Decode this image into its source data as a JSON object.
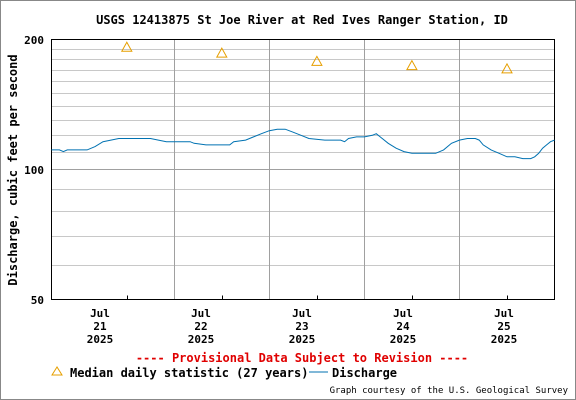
{
  "chart_data": {
    "type": "line",
    "title": "USGS 12413875 St Joe River at Red Ives Ranger Station, ID",
    "ylabel": "Discharge, cubic feet per second",
    "xlabel": "",
    "y_scale": "log",
    "ylim": [
      50,
      200
    ],
    "y_ticks": [
      "50",
      "100",
      "200"
    ],
    "x_range": [
      "2025-07-20 05:00",
      "2025-07-25 12:00"
    ],
    "x_ticks": [
      {
        "month": "Jul",
        "day": "21",
        "year": "2025"
      },
      {
        "month": "Jul",
        "day": "22",
        "year": "2025"
      },
      {
        "month": "Jul",
        "day": "23",
        "year": "2025"
      },
      {
        "month": "Jul",
        "day": "24",
        "year": "2025"
      },
      {
        "month": "Jul",
        "day": "25",
        "year": "2025"
      }
    ],
    "grid": true,
    "legend_position": "bottom",
    "series": [
      {
        "name": "Discharge",
        "color": "#0072b2",
        "style": "line",
        "points": [
          [
            "2025-07-20 05:00",
            111
          ],
          [
            "2025-07-20 07:00",
            111
          ],
          [
            "2025-07-20 08:00",
            110
          ],
          [
            "2025-07-20 09:00",
            111
          ],
          [
            "2025-07-20 14:00",
            111
          ],
          [
            "2025-07-20 16:00",
            113
          ],
          [
            "2025-07-20 18:00",
            116
          ],
          [
            "2025-07-20 20:00",
            117
          ],
          [
            "2025-07-20 22:00",
            118
          ],
          [
            "2025-07-21 02:00",
            118
          ],
          [
            "2025-07-21 06:00",
            118
          ],
          [
            "2025-07-21 08:00",
            117
          ],
          [
            "2025-07-21 10:00",
            116
          ],
          [
            "2025-07-21 16:00",
            116
          ],
          [
            "2025-07-21 17:00",
            115
          ],
          [
            "2025-07-21 20:00",
            114
          ],
          [
            "2025-07-22 01:00",
            114
          ],
          [
            "2025-07-22 02:00",
            114
          ],
          [
            "2025-07-22 03:00",
            116
          ],
          [
            "2025-07-22 06:00",
            117
          ],
          [
            "2025-07-22 08:00",
            119
          ],
          [
            "2025-07-22 10:00",
            121
          ],
          [
            "2025-07-22 12:00",
            123
          ],
          [
            "2025-07-22 14:00",
            124
          ],
          [
            "2025-07-22 16:00",
            124
          ],
          [
            "2025-07-22 18:00",
            122
          ],
          [
            "2025-07-22 20:00",
            120
          ],
          [
            "2025-07-22 22:00",
            118
          ],
          [
            "2025-07-23 02:00",
            117
          ],
          [
            "2025-07-23 06:00",
            117
          ],
          [
            "2025-07-23 07:00",
            116
          ],
          [
            "2025-07-23 08:00",
            118
          ],
          [
            "2025-07-23 10:00",
            119
          ],
          [
            "2025-07-23 12:00",
            119
          ],
          [
            "2025-07-23 14:00",
            120
          ],
          [
            "2025-07-23 15:00",
            121
          ],
          [
            "2025-07-23 16:00",
            119
          ],
          [
            "2025-07-23 18:00",
            115
          ],
          [
            "2025-07-23 20:00",
            112
          ],
          [
            "2025-07-23 22:00",
            110
          ],
          [
            "2025-07-24 00:00",
            109
          ],
          [
            "2025-07-24 04:00",
            109
          ],
          [
            "2025-07-24 06:00",
            109
          ],
          [
            "2025-07-24 08:00",
            111
          ],
          [
            "2025-07-24 10:00",
            115
          ],
          [
            "2025-07-24 12:00",
            117
          ],
          [
            "2025-07-24 14:00",
            118
          ],
          [
            "2025-07-24 16:00",
            118
          ],
          [
            "2025-07-24 17:00",
            117
          ],
          [
            "2025-07-24 18:00",
            114
          ],
          [
            "2025-07-24 20:00",
            111
          ],
          [
            "2025-07-24 22:00",
            109
          ],
          [
            "2025-07-25 00:00",
            107
          ],
          [
            "2025-07-25 02:00",
            107
          ],
          [
            "2025-07-25 04:00",
            106
          ],
          [
            "2025-07-25 05:00",
            106
          ],
          [
            "2025-07-25 06:00",
            106
          ],
          [
            "2025-07-25 07:00",
            107
          ],
          [
            "2025-07-25 08:00",
            109
          ],
          [
            "2025-07-25 09:00",
            112
          ],
          [
            "2025-07-25 10:00",
            114
          ],
          [
            "2025-07-25 11:00",
            116
          ],
          [
            "2025-07-25 12:00",
            117
          ]
        ]
      },
      {
        "name": "Median daily statistic (27 years)",
        "color": "#e69f00",
        "style": "triangle",
        "points": [
          [
            "2025-07-21 00:00",
            192
          ],
          [
            "2025-07-22 00:00",
            186
          ],
          [
            "2025-07-23 00:00",
            178
          ],
          [
            "2025-07-24 00:00",
            174
          ],
          [
            "2025-07-25 00:00",
            171
          ]
        ]
      }
    ],
    "provisional_notice": "---- Provisional Data Subject to Revision ----",
    "credit": "Graph courtesy of the U.S. Geological Survey"
  }
}
